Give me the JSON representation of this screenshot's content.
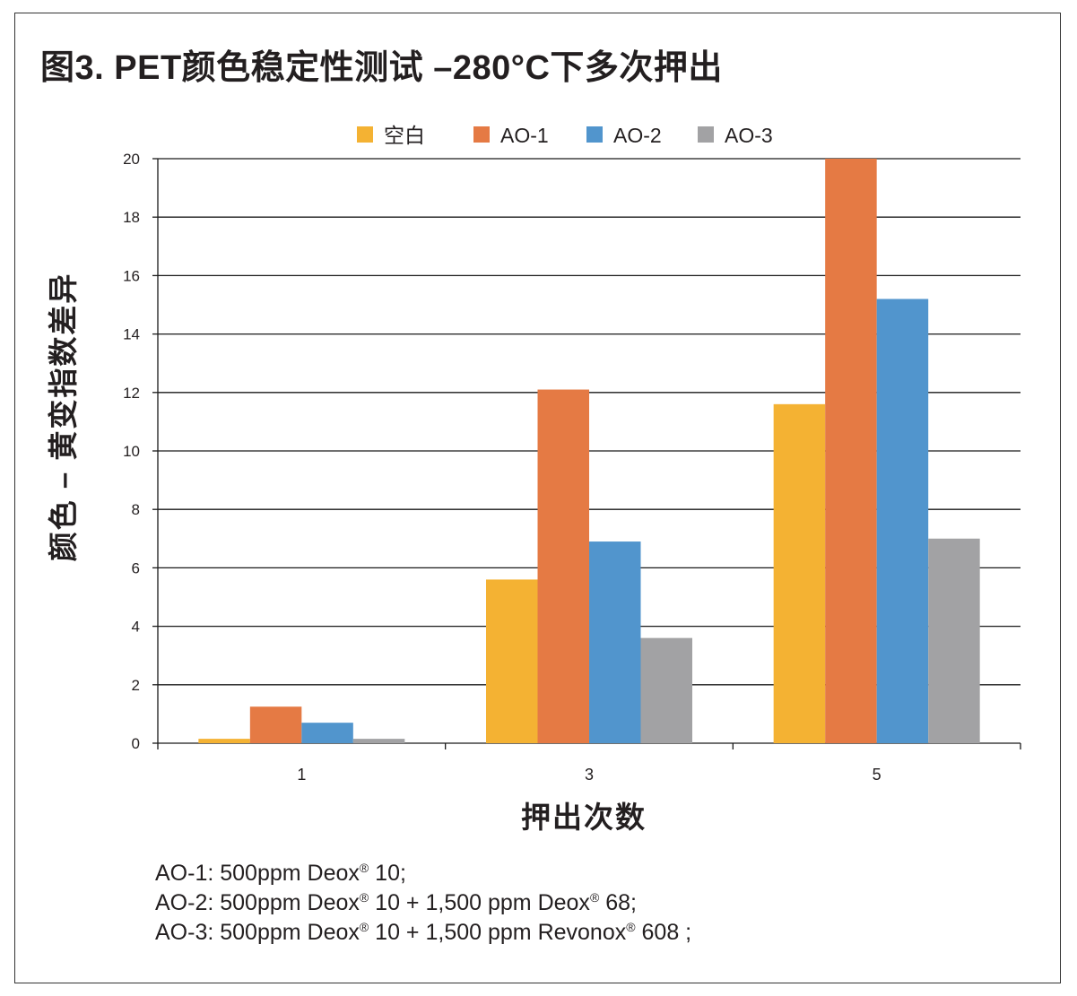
{
  "chart_data": {
    "type": "bar",
    "title": "图3. PET颜色稳定性测试 –280°C下多次押出",
    "xlabel": "押出次数",
    "ylabel": "颜色 – 黄变指数差异",
    "categories": [
      "1",
      "3",
      "5"
    ],
    "series": [
      {
        "name": "空白",
        "color": "#f4b233",
        "values": [
          0.15,
          5.6,
          11.6
        ]
      },
      {
        "name": "AO-1",
        "color": "#e57a44",
        "values": [
          1.25,
          12.1,
          20.0
        ]
      },
      {
        "name": "AO-2",
        "color": "#5195cd",
        "values": [
          0.7,
          6.9,
          15.2
        ]
      },
      {
        "name": "AO-3",
        "color": "#a2a2a4",
        "values": [
          0.15,
          3.6,
          7.0
        ]
      }
    ],
    "ylim": [
      0,
      20
    ],
    "yticks": [
      "0",
      "2",
      "4",
      "6",
      "8",
      "10",
      "12",
      "14",
      "16",
      "18",
      "20"
    ],
    "grid": true,
    "legend_position": "top"
  },
  "notes": [
    {
      "before": "AO-1: 500ppm Deox",
      "sup": "®",
      "after": " 10;"
    },
    {
      "before": "AO-2: 500ppm Deox",
      "sup": "®",
      "mid": " 10 + 1,500 ppm Deox",
      "sup2": "®",
      "after": " 68;"
    },
    {
      "before": "AO-3: 500ppm Deox",
      "sup": "®",
      "mid": " 10 + 1,500 ppm Revonox",
      "sup2": "®",
      "after": " 608 ;"
    }
  ]
}
